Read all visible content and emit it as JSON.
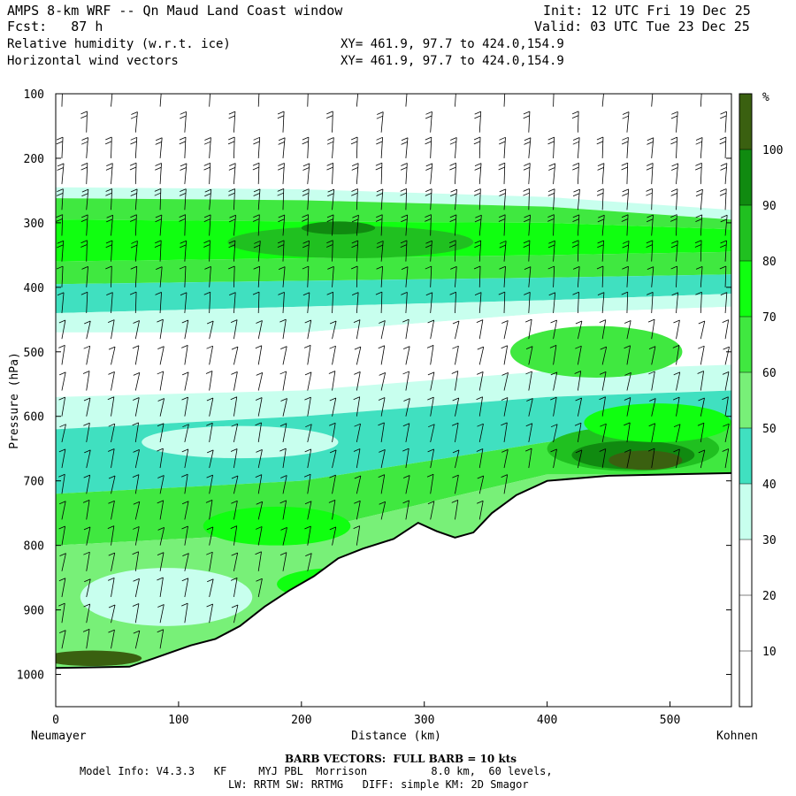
{
  "header": {
    "title": "AMPS 8-km WRF -- Qn Maud Land Coast window",
    "init": "Init: 12 UTC Fri 19 Dec 25",
    "fcst": "Fcst:   87 h",
    "valid": "Valid: 03 UTC Tue 23 Dec 25",
    "field1": "Relative humidity (w.r.t. ice)",
    "field2": "Horizontal wind vectors",
    "xy1": "XY= 461.9, 97.7 to 424.0,154.9",
    "xy2": "XY= 461.9, 97.7 to 424.0,154.9"
  },
  "footer": {
    "barb_note": "BARB VECTORS:  FULL BARB = 10 kts",
    "model_line1": "Model Info: V4.3.3   KF     MYJ PBL  Morrison          8.0 km,  60 levels,",
    "model_line2": "LW: RRTM SW: RRTMG   DIFF: simple KM: 2D Smagor"
  },
  "chart_data": {
    "type": "contour-cross-section",
    "title": "Relative humidity (w.r.t. ice) and horizontal wind vectors",
    "xlabel": "Distance (km)",
    "ylabel": "Pressure (hPa)",
    "xlim": [
      0,
      550
    ],
    "ylim": [
      1050,
      100
    ],
    "x_ticks": [
      0,
      100,
      200,
      300,
      400,
      500
    ],
    "y_ticks": [
      100,
      200,
      300,
      400,
      500,
      600,
      700,
      800,
      900,
      1000
    ],
    "left_endpoint": "Neumayer",
    "right_endpoint": "Kohnen",
    "colorbar": {
      "unit": "%",
      "levels": [
        10,
        20,
        30,
        40,
        50,
        60,
        70,
        80,
        90,
        100
      ],
      "colors": [
        "#ffffff",
        "#ffffff",
        "#ffffff",
        "#c8ffee",
        "#40e0c0",
        "#78f078",
        "#40e840",
        "#10ff10",
        "#20c020",
        "#108a10",
        "#3a6010"
      ]
    },
    "terrain_pressure": [
      [
        0,
        990
      ],
      [
        60,
        988
      ],
      [
        80,
        975
      ],
      [
        110,
        955
      ],
      [
        130,
        945
      ],
      [
        150,
        925
      ],
      [
        170,
        895
      ],
      [
        190,
        870
      ],
      [
        210,
        848
      ],
      [
        230,
        820
      ],
      [
        250,
        805
      ],
      [
        275,
        790
      ],
      [
        295,
        765
      ],
      [
        310,
        778
      ],
      [
        325,
        788
      ],
      [
        340,
        780
      ],
      [
        355,
        750
      ],
      [
        375,
        722
      ],
      [
        400,
        700
      ],
      [
        450,
        692
      ],
      [
        500,
        690
      ],
      [
        550,
        688
      ]
    ],
    "rh_layers": [
      {
        "top": [
          [
            0,
            245
          ],
          [
            200,
            248
          ],
          [
            400,
            260
          ],
          [
            550,
            280
          ]
        ],
        "bottom": [
          [
            0,
            262
          ],
          [
            200,
            265
          ],
          [
            400,
            275
          ],
          [
            550,
            295
          ]
        ],
        "rh": 35
      },
      {
        "top": [
          [
            0,
            262
          ],
          [
            200,
            265
          ],
          [
            400,
            275
          ],
          [
            550,
            295
          ]
        ],
        "bottom": [
          [
            0,
            295
          ],
          [
            200,
            298
          ],
          [
            400,
            300
          ],
          [
            550,
            310
          ]
        ],
        "rh": 62
      },
      {
        "top": [
          [
            0,
            295
          ],
          [
            200,
            298
          ],
          [
            400,
            300
          ],
          [
            550,
            310
          ]
        ],
        "bottom": [
          [
            0,
            360
          ],
          [
            200,
            355
          ],
          [
            400,
            350
          ],
          [
            550,
            345
          ]
        ],
        "rh": 75
      },
      {
        "top": [
          [
            0,
            360
          ],
          [
            200,
            355
          ],
          [
            400,
            350
          ],
          [
            550,
            345
          ]
        ],
        "bottom": [
          [
            0,
            395
          ],
          [
            200,
            390
          ],
          [
            400,
            385
          ],
          [
            550,
            380
          ]
        ],
        "rh": 62
      },
      {
        "top": [
          [
            0,
            395
          ],
          [
            200,
            390
          ],
          [
            400,
            385
          ],
          [
            550,
            380
          ]
        ],
        "bottom": [
          [
            0,
            440
          ],
          [
            200,
            430
          ],
          [
            400,
            420
          ],
          [
            550,
            410
          ]
        ],
        "rh": 45
      },
      {
        "top": [
          [
            0,
            440
          ],
          [
            200,
            430
          ],
          [
            400,
            420
          ],
          [
            550,
            410
          ]
        ],
        "bottom": [
          [
            0,
            470
          ],
          [
            200,
            470
          ],
          [
            400,
            440
          ],
          [
            550,
            430
          ]
        ],
        "rh": 35
      },
      {
        "top": [
          [
            0,
            470
          ],
          [
            200,
            470
          ],
          [
            400,
            440
          ],
          [
            550,
            430
          ]
        ],
        "bottom": [
          [
            0,
            570
          ],
          [
            200,
            560
          ],
          [
            400,
            530
          ],
          [
            550,
            520
          ]
        ],
        "rh": 15
      },
      {
        "top": [
          [
            0,
            570
          ],
          [
            200,
            560
          ],
          [
            400,
            530
          ],
          [
            550,
            520
          ]
        ],
        "bottom": [
          [
            0,
            620
          ],
          [
            200,
            600
          ],
          [
            400,
            570
          ],
          [
            550,
            560
          ]
        ],
        "rh": 35
      },
      {
        "top": [
          [
            0,
            620
          ],
          [
            200,
            600
          ],
          [
            400,
            570
          ],
          [
            550,
            560
          ]
        ],
        "bottom": [
          [
            0,
            720
          ],
          [
            200,
            700
          ],
          [
            400,
            640
          ],
          [
            550,
            610
          ]
        ],
        "rh": 45
      },
      {
        "top": [
          [
            0,
            720
          ],
          [
            200,
            700
          ],
          [
            400,
            640
          ],
          [
            550,
            610
          ]
        ],
        "bottom": [
          [
            0,
            800
          ],
          [
            200,
            780
          ],
          [
            400,
            690
          ],
          [
            550,
            690
          ]
        ],
        "rh": 62
      },
      {
        "top": [
          [
            0,
            800
          ],
          [
            200,
            780
          ],
          [
            400,
            690
          ],
          [
            550,
            690
          ]
        ],
        "bottom": [
          [
            0,
            1000
          ],
          [
            200,
            1000
          ],
          [
            400,
            1000
          ],
          [
            550,
            1000
          ]
        ],
        "rh": 55
      }
    ],
    "rh_patches": [
      {
        "cx": 90,
        "cy": 880,
        "rx": 70,
        "ry": 45,
        "rh": 35
      },
      {
        "cx": 150,
        "cy": 640,
        "rx": 80,
        "ry": 25,
        "rh": 35
      },
      {
        "cx": 180,
        "cy": 770,
        "rx": 60,
        "ry": 30,
        "rh": 75
      },
      {
        "cx": 240,
        "cy": 330,
        "rx": 100,
        "ry": 25,
        "rh": 85
      },
      {
        "cx": 230,
        "cy": 308,
        "rx": 30,
        "ry": 10,
        "rh": 95
      },
      {
        "cx": 470,
        "cy": 650,
        "rx": 70,
        "ry": 35,
        "rh": 80
      },
      {
        "cx": 470,
        "cy": 660,
        "rx": 50,
        "ry": 22,
        "rh": 95
      },
      {
        "cx": 480,
        "cy": 668,
        "rx": 30,
        "ry": 15,
        "rh": 100
      },
      {
        "cx": 30,
        "cy": 975,
        "rx": 40,
        "ry": 12,
        "rh": 100
      },
      {
        "cx": 440,
        "cy": 500,
        "rx": 70,
        "ry": 40,
        "rh": 62
      },
      {
        "cx": 490,
        "cy": 610,
        "rx": 60,
        "ry": 30,
        "rh": 75
      },
      {
        "cx": 230,
        "cy": 860,
        "rx": 50,
        "ry": 25,
        "rh": 75
      }
    ],
    "barb_columns_km": [
      5,
      25,
      45,
      65,
      85,
      105,
      125,
      145,
      165,
      185,
      205,
      225,
      245,
      265,
      285,
      305,
      325,
      345,
      365,
      385,
      405,
      425,
      445,
      465,
      485,
      505,
      525,
      545
    ],
    "barb_levels_hpa": [
      120,
      160,
      200,
      240,
      280,
      320,
      360,
      400,
      440,
      480,
      520,
      560,
      600,
      640,
      680,
      720,
      760,
      800,
      840,
      880,
      920,
      960
    ]
  }
}
